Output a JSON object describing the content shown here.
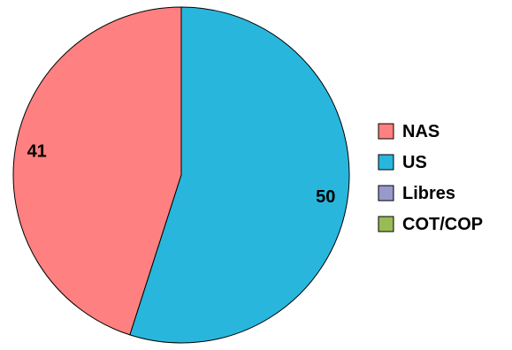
{
  "chart_data": {
    "type": "pie",
    "categories": [
      "NAS",
      "US",
      "Libres",
      "COT/COP"
    ],
    "values": [
      41,
      50,
      0,
      0
    ],
    "data_labels": [
      "41",
      "50",
      "",
      ""
    ],
    "colors": [
      "#FF8080",
      "#29B6DD",
      "#9999CC",
      "#99BB55"
    ],
    "legend": {
      "position": "right",
      "entries": [
        "NAS",
        "US",
        "Libres",
        "COT/COP"
      ]
    },
    "start_angle_deg": 0,
    "direction": "counterclockwise"
  }
}
